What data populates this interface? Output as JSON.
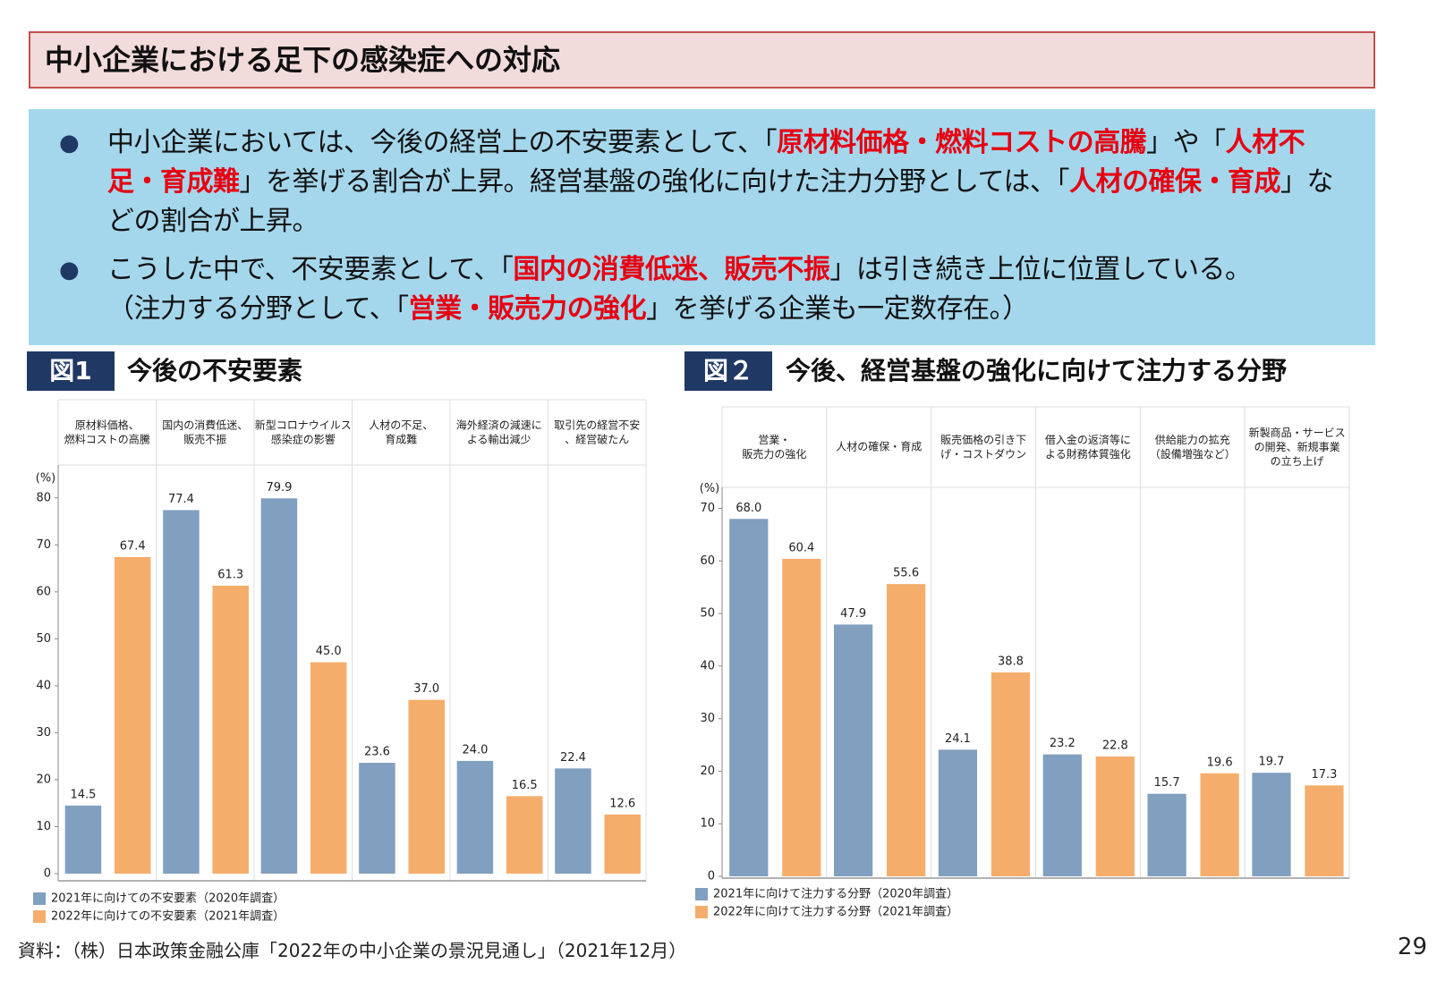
{
  "header": {
    "title": "中小企業における足下の感染症への対応"
  },
  "bullets": [
    {
      "segments": [
        {
          "text": "中小企業においては、今後の経営上の不安要素として、「",
          "emphasis": false
        },
        {
          "text": "原材料価格・燃料コストの高騰",
          "emphasis": true
        },
        {
          "text": "」や「",
          "emphasis": false
        },
        {
          "text": "人材不足・育成難",
          "emphasis": true
        },
        {
          "text": "」を挙げる割合が上昇。経営基盤の強化に向けた注力分野としては、「",
          "emphasis": false
        },
        {
          "text": "人材の確保・育成",
          "emphasis": true
        },
        {
          "text": "」などの割合が上昇。",
          "emphasis": false
        }
      ]
    },
    {
      "segments": [
        {
          "text": "こうした中で、不安要素として、「",
          "emphasis": false
        },
        {
          "text": "国内の消費低迷、販売不振",
          "emphasis": true
        },
        {
          "text": "」は引き続き上位に位置している。\n（注力する分野として、「",
          "emphasis": false
        },
        {
          "text": "営業・販売力の強化",
          "emphasis": true
        },
        {
          "text": "」を挙げる企業も一定数存在。）",
          "emphasis": false
        }
      ]
    }
  ],
  "chart_data": [
    {
      "type": "bar",
      "label": "図1",
      "title": "今後の不安要素",
      "ylabel": "(%)",
      "categories": [
        "原材料価格、\n燃料コストの高騰",
        "国内の消費低迷、\n販売不振",
        "新型コロナウイルス\n感染症の影響",
        "人材の不足、\n育成難",
        "海外経済の減速に\nよる輸出減少",
        "取引先の経営不安\n、経営破たん"
      ],
      "series": [
        {
          "name": "2021年に向けての不安要素（2020年調査）",
          "color": "#819fbf",
          "values": [
            14.5,
            77.4,
            79.9,
            23.6,
            24.0,
            22.4
          ],
          "value_labels": [
            "14.5",
            "77.4",
            "79.9",
            "23.6",
            "24.0",
            "22.4"
          ]
        },
        {
          "name": "2022年に向けての不安要素（2021年調査）",
          "color": "#f5ad6b",
          "values": [
            67.4,
            61.3,
            45.0,
            37.0,
            16.5,
            12.6
          ],
          "value_labels": [
            "67.4",
            "61.3",
            "45.0",
            "37.0",
            "16.5",
            "12.6"
          ]
        }
      ],
      "ylim": [
        0,
        87
      ],
      "yticks": [
        0,
        10,
        20,
        30,
        40,
        50,
        60,
        70,
        80
      ],
      "grid": false,
      "legend": "bottom-left"
    },
    {
      "type": "bar",
      "label": "図２",
      "title": "今後、経営基盤の強化に向けて注力する分野",
      "ylabel": "(%)",
      "categories": [
        "営業・\n販売力の強化",
        "人材の確保・育成",
        "販売価格の引き下\nげ・コストダウン",
        "借入金の返済等に\nよる財務体質強化",
        "供給能力の拡充\n（設備増強など）",
        "新製商品・サービス\nの開発、新規事業\nの立ち上げ"
      ],
      "series": [
        {
          "name": "2021年に向けて注力する分野（2020年調査）",
          "color": "#819fbf",
          "values": [
            68.0,
            47.9,
            24.1,
            23.2,
            15.7,
            19.7
          ],
          "value_labels": [
            "68.0",
            "47.9",
            "24.1",
            "23.2",
            "15.7",
            "19.7"
          ]
        },
        {
          "name": "2022年に向けて注力する分野（2021年調査）",
          "color": "#f5ad6b",
          "values": [
            60.4,
            55.6,
            38.8,
            22.8,
            19.6,
            17.3
          ],
          "value_labels": [
            "60.4",
            "55.6",
            "38.8",
            "22.8",
            "19.6",
            "17.3"
          ]
        }
      ],
      "ylim": [
        0,
        74
      ],
      "yticks": [
        0,
        10,
        20,
        30,
        40,
        50,
        60,
        70
      ],
      "grid": false,
      "legend": "bottom-left"
    }
  ],
  "source": "資料：（株）日本政策金融公庫「2022年の中小企業の景況見通し」（2021年12月）",
  "page_number": "29"
}
